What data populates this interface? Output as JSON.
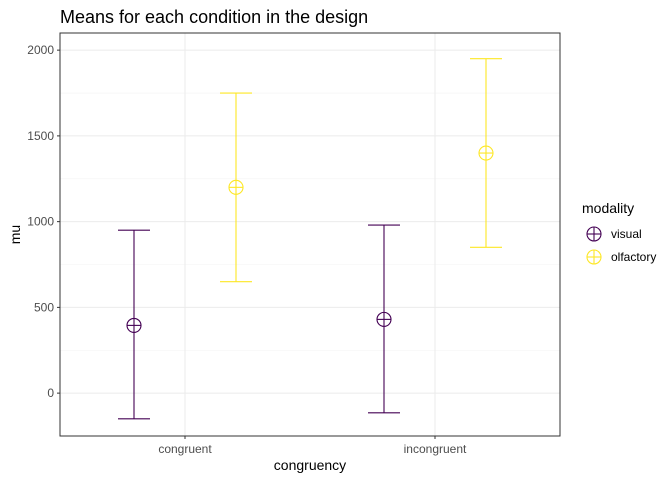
{
  "chart_data": {
    "type": "errorbar",
    "title": "Means for each condition in the design",
    "xlabel": "congruency",
    "ylabel": "mu",
    "categories": [
      "congruent",
      "incongruent"
    ],
    "ylim": [
      -250,
      2100
    ],
    "yticks": [
      0,
      500,
      1000,
      1500,
      2000
    ],
    "grid": true,
    "legend": {
      "title": "modality",
      "placement": "right"
    },
    "series": [
      {
        "name": "visual",
        "color": "#440154",
        "mean": [
          395,
          430
        ],
        "lower": [
          -150,
          -115
        ],
        "upper": [
          950,
          980
        ]
      },
      {
        "name": "olfactory",
        "color": "#FDE725",
        "mean": [
          1200,
          1400
        ],
        "lower": [
          650,
          850
        ],
        "upper": [
          1750,
          1950
        ]
      }
    ]
  }
}
